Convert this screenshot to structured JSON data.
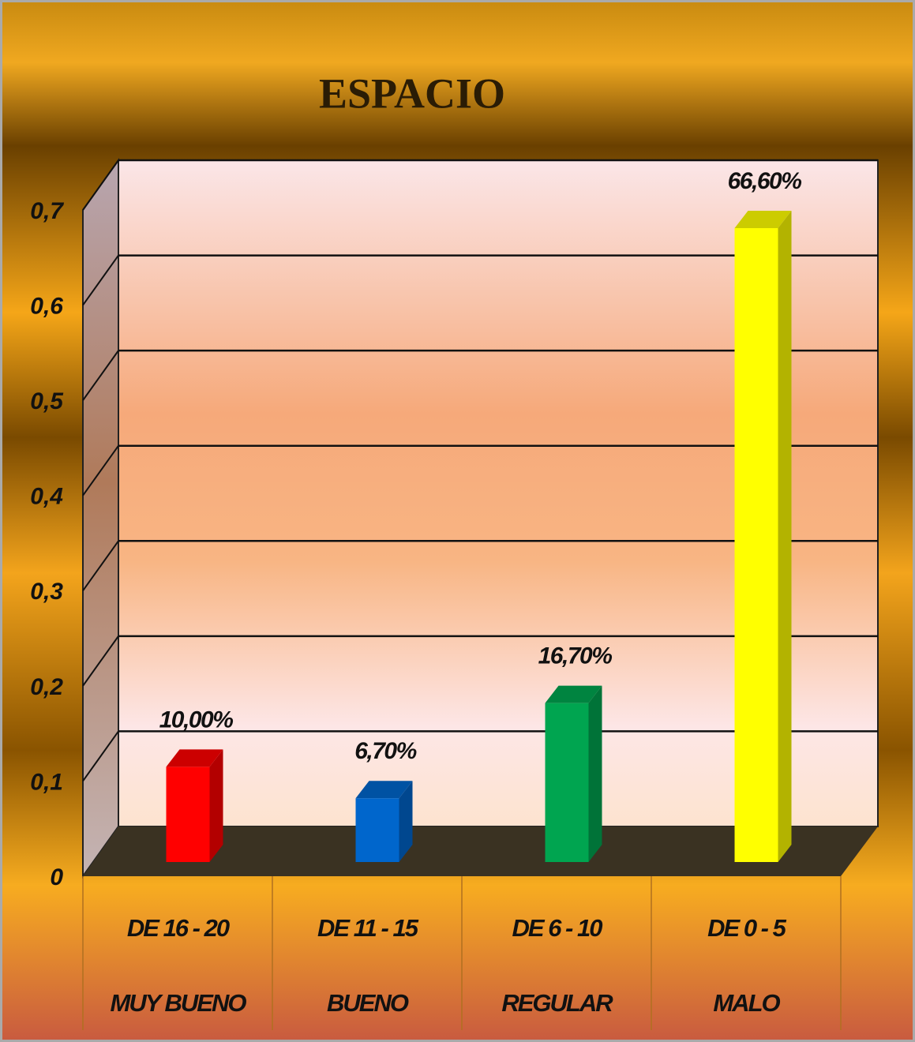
{
  "chart_data": {
    "type": "bar3d",
    "title": "ESPACIO",
    "categories": [
      "DE 16 - 20",
      "DE 11 - 15",
      "DE 6 - 10",
      "DE 0 - 5"
    ],
    "groups": [
      "MUY BUENO",
      "BUENO",
      "REGULAR",
      "MALO"
    ],
    "values": [
      0.1,
      0.067,
      0.167,
      0.666
    ],
    "value_labels": [
      "10,00%",
      "6,70%",
      "16,70%",
      "66,60%"
    ],
    "colors": [
      "#ff0000",
      "#0066cc",
      "#00a550",
      "#ffff00"
    ],
    "ylim": [
      0,
      0.7
    ],
    "yticks": [
      0,
      {
        "value": 0.1,
        "label": "0,1"
      },
      {
        "value": 0.2,
        "label": "0,2"
      },
      {
        "value": 0.3,
        "label": "0,3"
      },
      {
        "value": 0.4,
        "label": "0,4"
      },
      {
        "value": 0.5,
        "label": "0,5"
      },
      {
        "value": 0.6,
        "label": "0,6"
      },
      {
        "value": 0.7,
        "label": "0,7"
      }
    ],
    "grid": true
  }
}
